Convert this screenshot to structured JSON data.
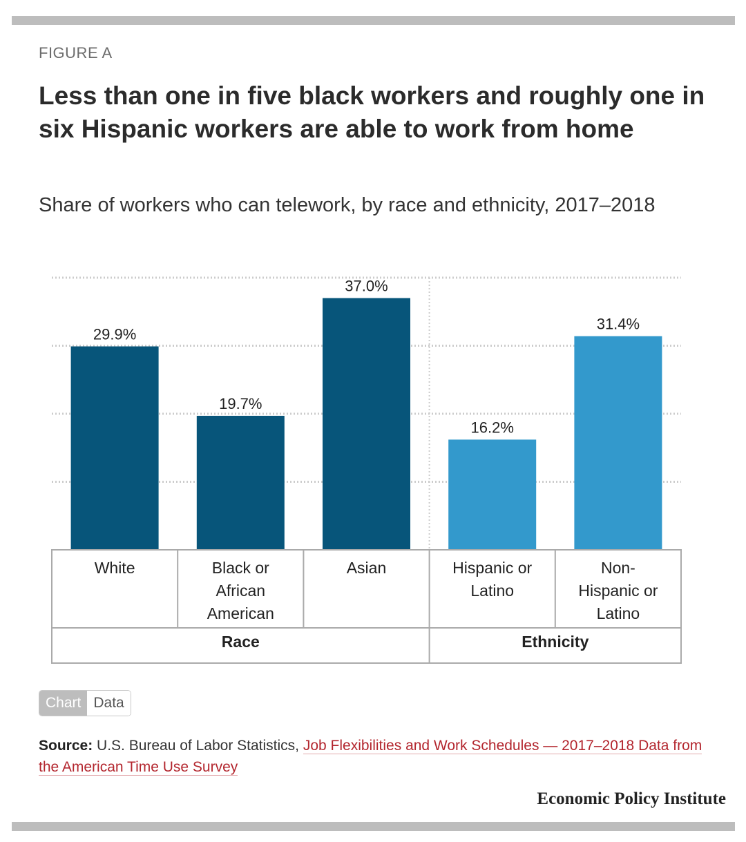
{
  "figure_label": "FIGURE A",
  "title": "Less than one in five black workers and roughly one in six Hispanic workers are able to work from home",
  "subtitle": "Share of workers who can telework, by race and ethnicity, 2017–2018",
  "toggle": {
    "chart_label": "Chart",
    "data_label": "Data"
  },
  "source": {
    "prefix": "Source:",
    "text": " U.S. Bureau of Labor Statistics, ",
    "link": "Job Flexibilities and Work Schedules — 2017–2018 Data from the American Time Use Survey"
  },
  "publisher": "Economic Policy Institute",
  "colors": {
    "race": "#07557a",
    "ethnicity": "#3399cc",
    "grid": "#cccccc",
    "border": "#aaaaaa"
  },
  "chart_data": {
    "type": "bar",
    "title": "Less than one in five black workers and roughly one in six Hispanic workers are able to work from home",
    "xlabel": "",
    "ylabel": "",
    "ylim": [
      0,
      40
    ],
    "grid": true,
    "categories": [
      "White",
      "Black or African American",
      "Asian",
      "Hispanic or Latino",
      "Non-Hispanic or Latino"
    ],
    "category_lines": [
      [
        "White"
      ],
      [
        "Black or",
        "African",
        "American"
      ],
      [
        "Asian"
      ],
      [
        "Hispanic or",
        "Latino"
      ],
      [
        "Non-",
        "Hispanic or",
        "Latino"
      ]
    ],
    "values": [
      29.9,
      19.7,
      37.0,
      16.2,
      31.4
    ],
    "value_labels": [
      "29.9%",
      "19.7%",
      "37.0%",
      "16.2%",
      "31.4%"
    ],
    "groups": [
      {
        "name": "Race",
        "members": [
          0,
          1,
          2
        ],
        "color_key": "race"
      },
      {
        "name": "Ethnicity",
        "members": [
          3,
          4
        ],
        "color_key": "ethnicity"
      }
    ]
  }
}
